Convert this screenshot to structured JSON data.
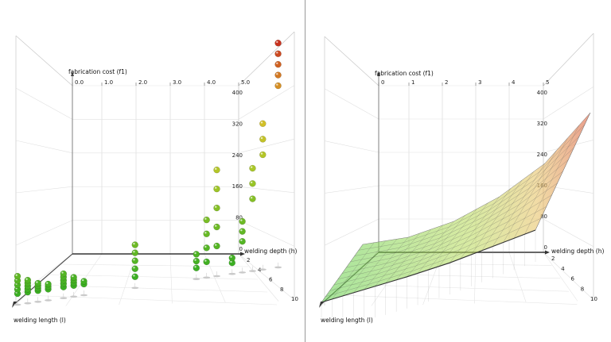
{
  "panels": [
    {
      "id": "scatter",
      "axis_labels": {
        "z": "fabrication cost (f1)",
        "h": "welding depth (h)",
        "l": "welding length (l)"
      },
      "top_ticks": [
        "0.0",
        "1.0",
        "2.0",
        "3.0",
        "4.0",
        "5.0"
      ],
      "z_ticks": [
        "400",
        "320",
        "240",
        "160",
        "80",
        "0"
      ],
      "h_ticks": [
        "2",
        "4",
        "6",
        "8",
        "10"
      ]
    },
    {
      "id": "surface",
      "axis_labels": {
        "z": "fabrication cost (f1)",
        "h": "welding depth (h)",
        "l": "welding length (l)"
      },
      "top_ticks": [
        "0",
        "1",
        "2",
        "3",
        "4",
        "5"
      ],
      "z_ticks": [
        "400",
        "320",
        "240",
        "160",
        "80",
        "0"
      ],
      "h_ticks": [
        "2",
        "4",
        "6",
        "8",
        "10"
      ]
    }
  ],
  "chart_data": [
    {
      "type": "scatter",
      "title": "",
      "axes": {
        "l": "welding length (l)",
        "h": "welding depth (h)",
        "z": "fabrication cost (f1)"
      },
      "zlim": [
        0,
        400
      ],
      "color_scale": "green (low cost) to red (high cost)",
      "columns": [
        {
          "x": 0.0,
          "z": [
            0,
            15,
            30,
            45,
            60
          ]
        },
        {
          "x": 0.2,
          "z": [
            0,
            10,
            20,
            30,
            40
          ]
        },
        {
          "x": 0.4,
          "z": [
            0,
            8,
            16,
            24
          ]
        },
        {
          "x": 0.6,
          "z": [
            0,
            8,
            16
          ]
        },
        {
          "x": 0.9,
          "z": [
            0,
            10,
            20,
            30,
            40
          ]
        },
        {
          "x": 1.1,
          "z": [
            0,
            8,
            16,
            24
          ]
        },
        {
          "x": 1.3,
          "z": [
            0,
            8
          ]
        },
        {
          "x": 2.3,
          "z": [
            0,
            20,
            40,
            60,
            80
          ]
        },
        {
          "x": 3.5,
          "z": [
            0,
            15,
            30
          ]
        },
        {
          "x": 3.7,
          "z": [
            10,
            40,
            70,
            100
          ]
        },
        {
          "x": 3.9,
          "z": [
            40,
            80,
            120,
            160,
            200
          ]
        },
        {
          "x": 4.2,
          "z": [
            0,
            10
          ]
        },
        {
          "x": 4.4,
          "z": [
            40,
            60,
            80
          ]
        },
        {
          "x": 4.6,
          "z": [
            120,
            150,
            180
          ]
        },
        {
          "x": 4.8,
          "z": [
            200,
            230,
            260
          ]
        },
        {
          "x": 5.1,
          "z": [
            320,
            340,
            360,
            380,
            400
          ]
        }
      ]
    },
    {
      "type": "surface",
      "title": "",
      "axes": {
        "l": "welding length (l)",
        "h": "welding depth (h)",
        "z": "fabrication cost (f1)"
      },
      "zlim": [
        0,
        400
      ],
      "color_scale": "green (low cost) to red (high cost)",
      "x": [
        0,
        1,
        2,
        3,
        4,
        5
      ],
      "back_edge_z": [
        0,
        20,
        60,
        120,
        200,
        320
      ],
      "front_edge_z": [
        0,
        5,
        10,
        20,
        40,
        60
      ]
    }
  ]
}
